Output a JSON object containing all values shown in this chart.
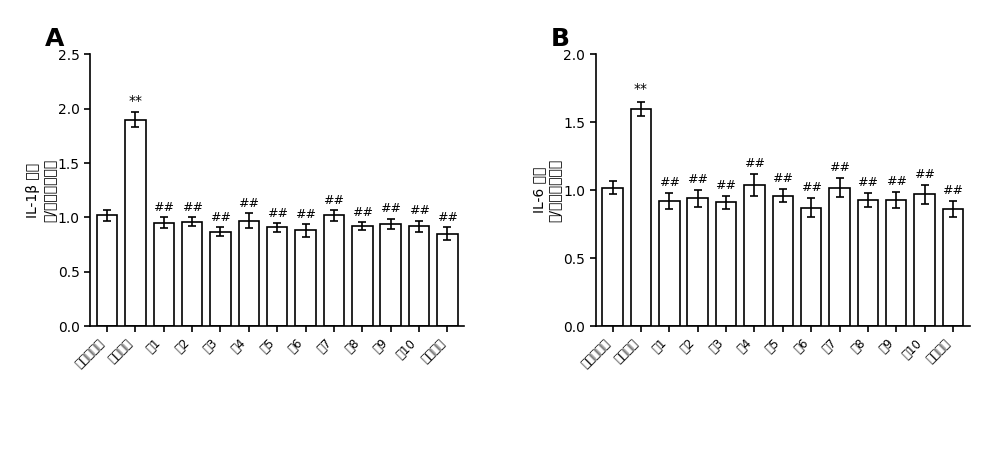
{
  "panel_A": {
    "title": "A",
    "ylabel_main": "IL-1β 水平",
    "ylabel_paren": "（/空白对照组）",
    "categories": [
      "空白对照组",
      "东贞苓碗",
      "式1",
      "式2",
      "式3",
      "式4",
      "式5",
      "式6",
      "式7",
      "式8",
      "式9",
      "式10",
      "多奈媚齐"
    ],
    "values": [
      1.02,
      1.9,
      0.95,
      0.96,
      0.87,
      0.97,
      0.91,
      0.88,
      1.02,
      0.92,
      0.94,
      0.92,
      0.85
    ],
    "errors": [
      0.05,
      0.07,
      0.05,
      0.04,
      0.04,
      0.07,
      0.04,
      0.06,
      0.05,
      0.04,
      0.05,
      0.05,
      0.06
    ],
    "ylim": [
      0,
      2.5
    ],
    "yticks": [
      0.0,
      0.5,
      1.0,
      1.5,
      2.0,
      2.5
    ],
    "star_idx": 1,
    "hash_indices": [
      2,
      3,
      4,
      5,
      6,
      7,
      8,
      9,
      10,
      11,
      12
    ]
  },
  "panel_B": {
    "title": "B",
    "ylabel_main": "IL-6 水平",
    "ylabel_paren": "（/空白对照组）",
    "categories": [
      "空白对照组",
      "东贞苓碗",
      "式1",
      "式2",
      "式3",
      "式4",
      "式5",
      "式6",
      "式7",
      "式8",
      "式9",
      "式10",
      "多奈媚齐"
    ],
    "values": [
      1.02,
      1.6,
      0.92,
      0.94,
      0.91,
      1.04,
      0.96,
      0.87,
      1.02,
      0.93,
      0.93,
      0.97,
      0.86
    ],
    "errors": [
      0.05,
      0.05,
      0.06,
      0.06,
      0.05,
      0.08,
      0.05,
      0.07,
      0.07,
      0.05,
      0.06,
      0.07,
      0.06
    ],
    "ylim": [
      0,
      2.0
    ],
    "yticks": [
      0.0,
      0.5,
      1.0,
      1.5,
      2.0
    ],
    "star_idx": 1,
    "hash_indices": [
      2,
      3,
      4,
      5,
      6,
      7,
      8,
      9,
      10,
      11,
      12
    ]
  },
  "bar_color": "#ffffff",
  "bar_edgecolor": "#000000",
  "errorbar_color": "#000000",
  "background_color": "#ffffff",
  "fig_width": 10.0,
  "fig_height": 4.53,
  "dpi": 100
}
